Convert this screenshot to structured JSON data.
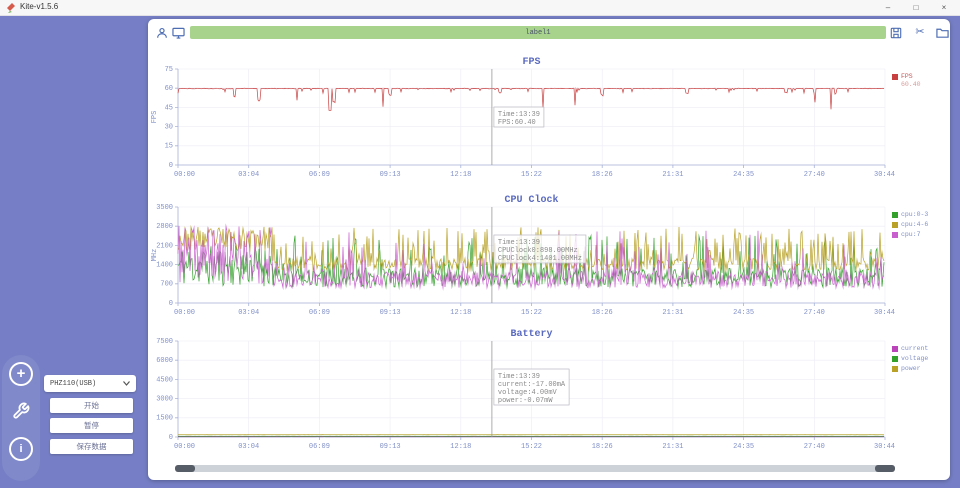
{
  "window": {
    "title": "Kite-v1.5.6",
    "minimize": "–",
    "maximize": "□",
    "close": "×"
  },
  "toolbar": {
    "progress_label": "label1",
    "icons": [
      "user-icon",
      "display-icon",
      "save-icon",
      "scissors-icon",
      "folder-icon"
    ]
  },
  "sidebar": {
    "plus": "+",
    "info": "i"
  },
  "control_panel": {
    "device": "PHZ110(USB)",
    "start": "开始",
    "pause": "暂停",
    "save": "保存数据"
  },
  "colors": {
    "background": "#767fc5",
    "panel": "#ffffff",
    "progress_green": "#a8d38d",
    "toolbar_icon": "#4d6db3",
    "axis": "#a8b2d8",
    "tick_label": "#8090c8",
    "title": "#5a6abf",
    "grid": "#ececf4",
    "crosshair": "#999999",
    "tooltip_text": "#8a8a8a",
    "fps_line": "#c94040",
    "cpu03": "#33a02c",
    "cpu46": "#b8a126",
    "cpu7": "#c95fce",
    "current": "#bb44bb",
    "voltage": "#33a02c",
    "power": "#b8a126"
  },
  "chart_data": [
    {
      "type": "line",
      "title": "FPS",
      "ylabel": "FPS",
      "ylim": [
        0,
        75
      ],
      "yticks": [
        0,
        15,
        30,
        45,
        60,
        75
      ],
      "xticks": [
        "00:00",
        "03:04",
        "06:09",
        "09:13",
        "12:18",
        "15:22",
        "18:26",
        "21:31",
        "24:35",
        "27:40",
        "30:44"
      ],
      "grid": true,
      "legend_position": "right",
      "crosshair_frac": 0.444,
      "crosshair_time": "13:39",
      "tooltip": [
        "Time:13:39",
        "FPS:60.40"
      ],
      "tooltip_y": 54,
      "legend": [
        {
          "label": "FPS",
          "color": "#c94040",
          "label_color": "#c05555",
          "value": "60.40",
          "value_color": "#d89a9a"
        }
      ],
      "series": [
        {
          "name": "FPS",
          "color": "#c94040",
          "gen": {
            "kind": "fps",
            "seed": 7,
            "base": 60,
            "dips": [
              [
                0.08,
                53
              ],
              [
                0.115,
                50
              ],
              [
                0.215,
                43
              ],
              [
                0.221,
                49
              ],
              [
                0.3,
                55
              ],
              [
                0.455,
                56
              ],
              [
                0.6,
                55
              ],
              [
                0.72,
                56
              ],
              [
                0.86,
                56
              ],
              [
                0.93,
                56
              ]
            ]
          }
        }
      ]
    },
    {
      "type": "line",
      "title": "CPU Clock",
      "ylabel": "MHz",
      "ylim": [
        0,
        3500
      ],
      "yticks": [
        0,
        700,
        1400,
        2100,
        2800,
        3500
      ],
      "xticks": [
        "00:00",
        "03:04",
        "06:09",
        "09:13",
        "12:18",
        "15:22",
        "18:26",
        "21:31",
        "24:35",
        "27:40",
        "30:44"
      ],
      "grid": true,
      "legend_position": "right",
      "crosshair_frac": 0.444,
      "crosshair_time": "13:39",
      "tooltip": [
        "Time:13:39",
        "CPUClock0:898.00MHz",
        "CPUClock4:1401.00MHz"
      ],
      "tooltip_y": 44,
      "legend": [
        {
          "label": "cpu:0-3",
          "color": "#33a02c"
        },
        {
          "label": "cpu:4-6",
          "color": "#b8a126"
        },
        {
          "label": "cpu:7",
          "color": "#c95fce"
        }
      ],
      "series": [
        {
          "name": "cpu:0-3",
          "color": "#33a02c",
          "gen": {
            "kind": "cpu",
            "seed": 11,
            "phase1": 0.133,
            "p1lo": 600,
            "p1hi": 2100,
            "base": 820,
            "spread": 700,
            "spikeP": 0.18,
            "spikeHi": 2250
          }
        },
        {
          "name": "cpu:4-6",
          "color": "#b8a126",
          "gen": {
            "kind": "cpu",
            "seed": 23,
            "phase1": 0.133,
            "p1lo": 1900,
            "p1hi": 2780,
            "base": 1350,
            "spread": 430,
            "spikeP": 0.24,
            "spikeHi": 2650
          }
        },
        {
          "name": "cpu:7",
          "color": "#c95fce",
          "gen": {
            "kind": "cpu",
            "seed": 37,
            "phase1": 0.133,
            "p1lo": 700,
            "p1hi": 2820,
            "base": 760,
            "spread": 620,
            "spikeP": 0.13,
            "spikeHi": 2450
          }
        }
      ]
    },
    {
      "type": "line",
      "title": "Battery",
      "ylabel": "",
      "ylim": [
        0,
        7500
      ],
      "yticks": [
        0,
        1500,
        3000,
        4500,
        6000,
        7500
      ],
      "xticks": [
        "00:00",
        "03:04",
        "06:09",
        "09:13",
        "12:18",
        "15:22",
        "18:26",
        "21:31",
        "24:35",
        "27:40",
        "30:44"
      ],
      "grid": true,
      "legend_position": "right",
      "crosshair_frac": 0.444,
      "crosshair_time": "13:39",
      "tooltip": [
        "Time:13:39",
        "current:-17.00mA",
        "voltage:4.00mV",
        "power:-0.07mW"
      ],
      "tooltip_y": 44,
      "legend": [
        {
          "label": "current",
          "color": "#bb44bb"
        },
        {
          "label": "voltage",
          "color": "#33a02c"
        },
        {
          "label": "power",
          "color": "#b8a126"
        }
      ],
      "series": [
        {
          "name": "current",
          "color": "#bb44bb",
          "gen": {
            "kind": "flat",
            "seed": 41,
            "value": 20
          }
        },
        {
          "name": "voltage",
          "color": "#33a02c",
          "gen": {
            "kind": "flat",
            "seed": 43,
            "value": 60
          }
        },
        {
          "name": "power",
          "color": "#b8a126",
          "gen": {
            "kind": "flat",
            "seed": 47,
            "value": 180
          }
        }
      ]
    }
  ]
}
